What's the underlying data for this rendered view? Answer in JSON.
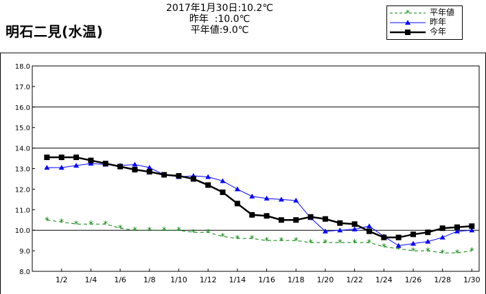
{
  "station": {
    "title": "明石二見(水温)"
  },
  "reading": {
    "line1": "2017年1月30日:10.2℃",
    "line2": "昨年  :10.0℃",
    "line3": "平年値:9.0℃"
  },
  "legend": {
    "normal": "平年値",
    "last_year": "昨年",
    "this_year": "今年"
  },
  "colors": {
    "normal": "#008000",
    "last_year": "#0000ff",
    "this_year": "#000000",
    "reference_grid": "#000000"
  },
  "chart_data": {
    "type": "line",
    "title": "明石二見(水温)",
    "xlabel": "",
    "ylabel": "",
    "x": [
      1,
      2,
      3,
      4,
      5,
      6,
      7,
      8,
      9,
      10,
      11,
      12,
      13,
      14,
      15,
      16,
      17,
      18,
      19,
      20,
      21,
      22,
      23,
      24,
      25,
      26,
      27,
      28,
      29,
      30
    ],
    "x_tick_values": [
      2,
      4,
      6,
      8,
      10,
      12,
      14,
      16,
      18,
      20,
      22,
      24,
      26,
      28,
      30
    ],
    "x_tick_labels": [
      "1/2",
      "1/4",
      "1/6",
      "1/8",
      "1/10",
      "1/12",
      "1/14",
      "1/16",
      "1/18",
      "1/20",
      "1/22",
      "1/24",
      "1/26",
      "1/28",
      "1/30"
    ],
    "xlim": [
      0,
      30.5
    ],
    "y_ticks": [
      8.0,
      9.0,
      10.0,
      11.0,
      12.0,
      13.0,
      14.0,
      15.0,
      16.0,
      17.0,
      18.0
    ],
    "y_tick_labels": [
      "8.0",
      "9.0",
      "10.0",
      "11.0",
      "12.0",
      "13.0",
      "14.0",
      "15.0",
      "16.0",
      "17.0",
      "18.0"
    ],
    "ylim": [
      8.0,
      18.0
    ],
    "gridlines_y": [
      10.0,
      14.0,
      16.0
    ],
    "legend_position": "top-right",
    "series": [
      {
        "name": "平年値",
        "style": "dashed",
        "marker": "asterisk",
        "values": [
          10.5,
          10.4,
          10.3,
          10.3,
          10.3,
          10.1,
          10.0,
          10.0,
          10.0,
          10.0,
          9.9,
          9.9,
          9.7,
          9.6,
          9.6,
          9.5,
          9.5,
          9.5,
          9.4,
          9.4,
          9.4,
          9.4,
          9.4,
          9.2,
          9.1,
          9.0,
          9.0,
          8.9,
          8.9,
          9.0
        ]
      },
      {
        "name": "昨年",
        "style": "solid",
        "marker": "triangle",
        "values": [
          13.05,
          13.05,
          13.15,
          13.25,
          13.2,
          13.15,
          13.2,
          13.05,
          12.7,
          12.6,
          12.65,
          12.6,
          12.4,
          12.0,
          11.65,
          11.55,
          11.5,
          11.45,
          10.6,
          9.95,
          10.0,
          10.05,
          10.2,
          9.7,
          9.25,
          9.35,
          9.45,
          9.65,
          9.95,
          10.0
        ]
      },
      {
        "name": "今年",
        "style": "solid-thick",
        "marker": "square",
        "values": [
          13.55,
          13.55,
          13.55,
          13.4,
          13.25,
          13.1,
          12.95,
          12.85,
          12.7,
          12.65,
          12.5,
          12.2,
          11.85,
          11.3,
          10.75,
          10.7,
          10.5,
          10.5,
          10.65,
          10.55,
          10.35,
          10.3,
          9.95,
          9.65,
          9.65,
          9.8,
          9.9,
          10.1,
          10.15,
          10.2
        ]
      }
    ]
  }
}
